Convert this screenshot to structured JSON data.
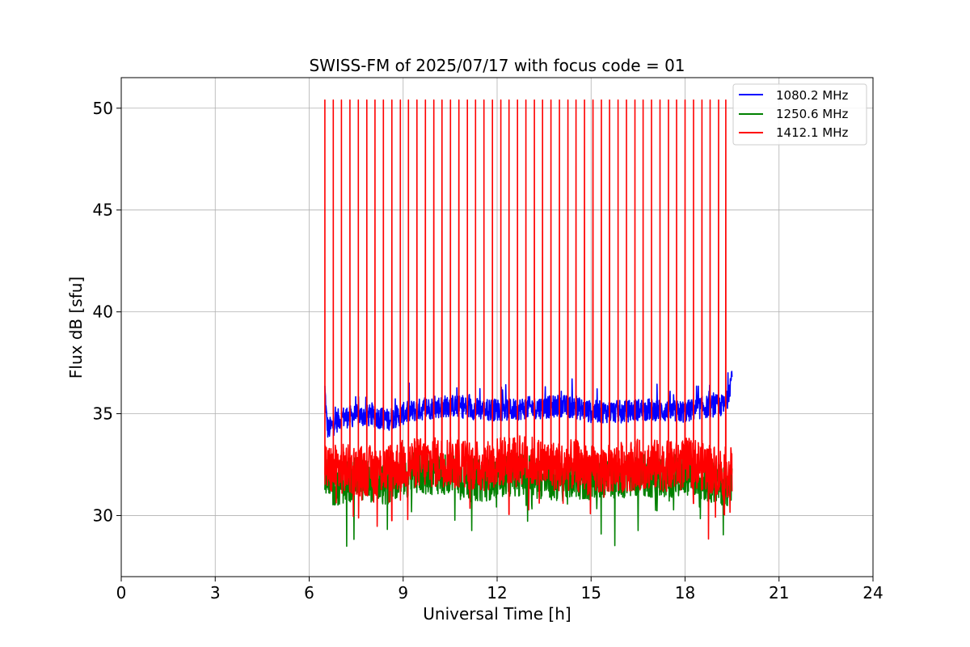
{
  "chart_data": {
    "type": "line",
    "title": "SWISS-FM of 2025/07/17 with focus code = 01",
    "xlabel": "Universal Time [h]",
    "ylabel": "Flux dB [sfu]",
    "xlim": [
      0,
      24
    ],
    "ylim": [
      27.0,
      51.5
    ],
    "xticks": [
      0,
      3,
      6,
      9,
      12,
      15,
      18,
      21,
      24
    ],
    "yticks": [
      30,
      35,
      40,
      45,
      50
    ],
    "grid": true,
    "legend_position": "top-right",
    "series": [
      {
        "name": "1080.2 MHz",
        "color": "#0000ff",
        "x": [
          6.5,
          6.55,
          6.6,
          7.0,
          7.5,
          8.0,
          8.5,
          9.0,
          9.5,
          10.0,
          10.5,
          11.0,
          11.5,
          12.0,
          12.5,
          13.0,
          13.5,
          14.0,
          14.5,
          15.0,
          15.5,
          16.0,
          16.5,
          17.0,
          17.5,
          18.0,
          18.5,
          19.0,
          19.3,
          19.5
        ],
        "y": [
          36.2,
          34.8,
          34.2,
          34.8,
          34.9,
          34.9,
          34.7,
          35.0,
          35.2,
          35.3,
          35.4,
          35.3,
          35.2,
          35.2,
          35.2,
          35.3,
          35.3,
          35.4,
          35.3,
          35.1,
          35.1,
          35.1,
          35.2,
          35.2,
          35.1,
          35.1,
          35.3,
          35.4,
          35.4,
          36.9
        ]
      },
      {
        "name": "1250.6 MHz",
        "color": "#008000",
        "x": [
          6.5,
          6.6,
          7.0,
          7.5,
          8.0,
          8.5,
          9.0,
          9.5,
          10.0,
          10.5,
          11.0,
          11.5,
          12.0,
          12.5,
          13.0,
          13.5,
          14.0,
          14.5,
          15.0,
          15.5,
          16.0,
          16.5,
          17.0,
          17.5,
          18.0,
          18.5,
          19.0,
          19.5
        ],
        "y": [
          32.3,
          31.3,
          31.6,
          31.8,
          31.7,
          31.5,
          31.9,
          32.1,
          32.0,
          32.1,
          31.8,
          31.7,
          31.9,
          32.0,
          32.0,
          31.8,
          31.7,
          31.9,
          31.7,
          31.9,
          31.9,
          32.0,
          31.9,
          31.9,
          32.1,
          31.8,
          31.6,
          31.5
        ]
      },
      {
        "name": "1412.1 MHz",
        "color": "#ff0000",
        "x": [
          6.5,
          6.6,
          7.0,
          7.5,
          8.0,
          8.5,
          9.0,
          9.5,
          10.0,
          10.5,
          11.0,
          11.5,
          12.0,
          12.5,
          13.0,
          13.5,
          14.0,
          14.5,
          15.0,
          15.5,
          16.0,
          16.5,
          17.0,
          17.5,
          18.0,
          18.5,
          19.0,
          19.5
        ],
        "y": [
          32.4,
          32.2,
          32.3,
          32.2,
          32.2,
          32.3,
          32.5,
          32.6,
          32.6,
          32.7,
          32.5,
          32.4,
          32.6,
          32.8,
          32.7,
          32.5,
          32.4,
          32.5,
          32.2,
          32.3,
          32.4,
          32.5,
          32.5,
          32.4,
          32.6,
          32.5,
          32.2,
          32.1
        ],
        "spikes_x": [
          6.5,
          6.77,
          7.03,
          7.3,
          7.57,
          7.84,
          8.1,
          8.37,
          8.64,
          8.91,
          9.17,
          9.44,
          9.71,
          9.98,
          10.24,
          10.51,
          10.78,
          11.05,
          11.31,
          11.58,
          11.85,
          12.12,
          12.38,
          12.65,
          12.92,
          13.19,
          13.45,
          13.72,
          13.99,
          14.26,
          14.52,
          14.79,
          15.06,
          15.33,
          15.59,
          15.86,
          16.13,
          16.4,
          16.66,
          16.93,
          17.2,
          17.47,
          17.73,
          18.0,
          18.27,
          18.54,
          18.8,
          19.07,
          19.3
        ],
        "spike_peak": 50.4
      }
    ]
  }
}
